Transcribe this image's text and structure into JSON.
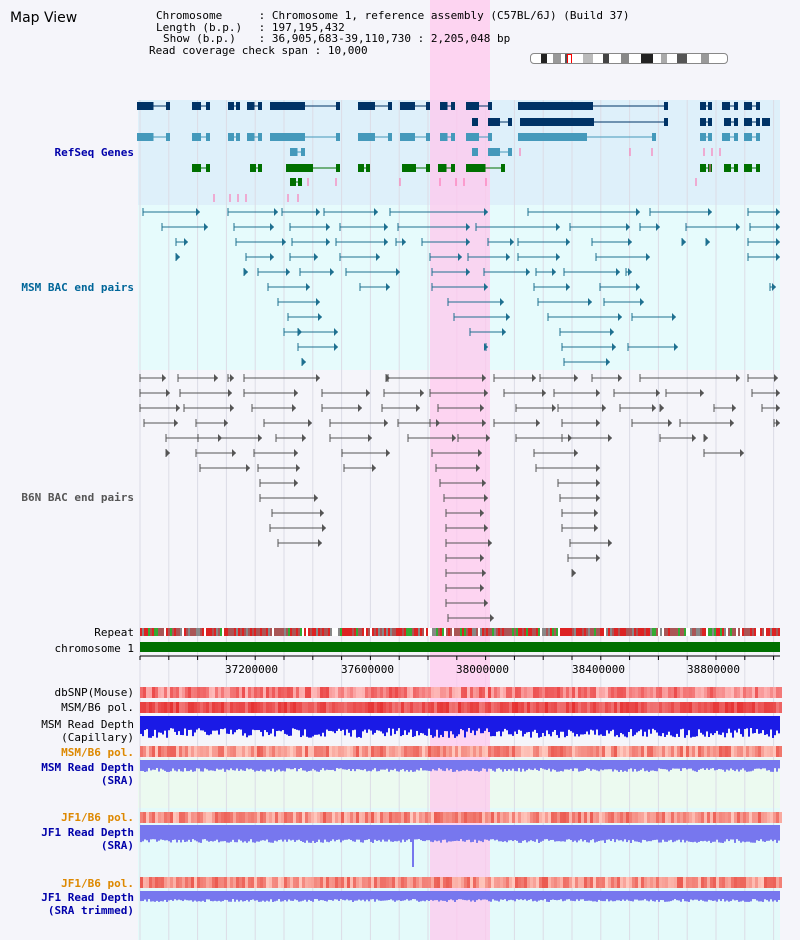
{
  "title": "Map View",
  "info": {
    "chromosome_key": "Chromosome",
    "chromosome_val": "Chromosome 1, reference assembly (C57BL/6J) (Build 37)",
    "length_key": "Length (b.p.)",
    "length_val": "197,195,432",
    "show_key": "Show (b.p.)",
    "show_val": "36,905,683-39,110,730 : 2,205,048 bp",
    "span_key": "Read coverage check span",
    "span_val": "10,000"
  },
  "tracks": {
    "refseq": {
      "label": "RefSeq Genes",
      "color": "#0000aa"
    },
    "msm_bac": {
      "label": "MSM BAC end pairs",
      "color": "#006699"
    },
    "b6n_bac": {
      "label": "B6N BAC end pairs",
      "color": "#555555"
    },
    "repeat": {
      "label": "Repeat"
    },
    "chromosome": {
      "label": "chromosome 1"
    },
    "dbsnp": {
      "label": "dbSNP(Mouse)"
    },
    "msm_pol": {
      "label": "MSM/B6 pol."
    },
    "msm_depth_cap": {
      "label1": "MSM Read Depth",
      "label2": "(Capillary)"
    },
    "msm_pol2": {
      "label": "MSM/B6 pol.",
      "color": "#dd8800"
    },
    "msm_depth_sra": {
      "label1": "MSM Read Depth",
      "label2": "(SRA)"
    },
    "jf1_pol": {
      "label": "JF1/B6 pol.",
      "color": "#dd8800"
    },
    "jf1_depth": {
      "label1": "JF1 Read Depth",
      "label2": "(SRA)"
    },
    "jf1_pol2": {
      "label": "JF1/B6 pol.",
      "color": "#dd8800"
    },
    "jf1_depth_trim": {
      "label1": "JF1 Read Depth",
      "label2": "(SRA trimmed)"
    }
  },
  "axis": {
    "ticks": [
      "37200000",
      "37600000",
      "38000000",
      "38400000",
      "38800000"
    ]
  },
  "colors": {
    "refseq_bg": "#def0fa",
    "msm_bg": "#e6fbfc",
    "b6n_bg": "#f5f5fa",
    "highlight": "#ffc8ee",
    "chrom_bar": "#007000",
    "depth_blue": "#1a1ae6",
    "depth_light": "#7777ee",
    "gene_dark": "#003366",
    "gene_mid": "#4499bb",
    "gene_green": "#007000",
    "msm_line": "#1e7090",
    "b6n_line": "#555555"
  }
}
